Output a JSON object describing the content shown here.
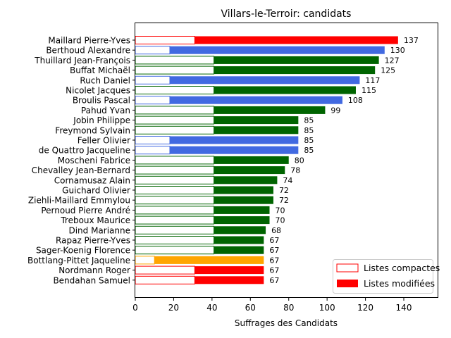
{
  "chart_data": {
    "type": "bar",
    "orientation": "horizontal",
    "title": "Villars-le-Terroir: candidats",
    "xlabel": "Suffrages des Candidats",
    "xlim": [
      0,
      158
    ],
    "xticks": [
      0,
      20,
      40,
      60,
      80,
      100,
      120,
      140
    ],
    "colors": {
      "red": "#ff0000",
      "blue": "#4169e1",
      "green": "#006400",
      "orange": "#ffa500"
    },
    "legend": {
      "position": "lower right",
      "entries": [
        {
          "label": "Listes compactes",
          "style": "outline",
          "color": "#ff0000"
        },
        {
          "label": "Listes modifiées",
          "style": "filled",
          "color": "#ff0000"
        }
      ]
    },
    "candidates": [
      {
        "name": "Maillard Pierre-Yves",
        "total": 137,
        "compact": 31,
        "color": "red"
      },
      {
        "name": "Berthoud Alexandre",
        "total": 130,
        "compact": 18,
        "color": "blue"
      },
      {
        "name": "Thuillard Jean-François",
        "total": 127,
        "compact": 41,
        "color": "green"
      },
      {
        "name": "Buffat Michaël",
        "total": 125,
        "compact": 41,
        "color": "green"
      },
      {
        "name": "Ruch Daniel",
        "total": 117,
        "compact": 18,
        "color": "blue"
      },
      {
        "name": "Nicolet Jacques",
        "total": 115,
        "compact": 41,
        "color": "green"
      },
      {
        "name": "Broulis Pascal",
        "total": 108,
        "compact": 18,
        "color": "blue"
      },
      {
        "name": "Pahud Yvan",
        "total": 99,
        "compact": 41,
        "color": "green"
      },
      {
        "name": "Jobin Philippe",
        "total": 85,
        "compact": 41,
        "color": "green"
      },
      {
        "name": "Freymond Sylvain",
        "total": 85,
        "compact": 41,
        "color": "green"
      },
      {
        "name": "Feller Olivier",
        "total": 85,
        "compact": 18,
        "color": "blue"
      },
      {
        "name": "de Quattro Jacqueline",
        "total": 85,
        "compact": 18,
        "color": "blue"
      },
      {
        "name": "Moscheni Fabrice",
        "total": 80,
        "compact": 41,
        "color": "green"
      },
      {
        "name": "Chevalley Jean-Bernard",
        "total": 78,
        "compact": 41,
        "color": "green"
      },
      {
        "name": "Cornamusaz Alain",
        "total": 74,
        "compact": 41,
        "color": "green"
      },
      {
        "name": "Guichard Olivier",
        "total": 72,
        "compact": 41,
        "color": "green"
      },
      {
        "name": "Ziehli-Maillard Emmylou",
        "total": 72,
        "compact": 41,
        "color": "green"
      },
      {
        "name": "Pernoud Pierre André",
        "total": 70,
        "compact": 41,
        "color": "green"
      },
      {
        "name": "Treboux Maurice",
        "total": 70,
        "compact": 41,
        "color": "green"
      },
      {
        "name": "Dind Marianne",
        "total": 68,
        "compact": 41,
        "color": "green"
      },
      {
        "name": "Rapaz Pierre-Yves",
        "total": 67,
        "compact": 41,
        "color": "green"
      },
      {
        "name": "Sager-Koenig Florence",
        "total": 67,
        "compact": 41,
        "color": "green"
      },
      {
        "name": "Bottlang-Pittet Jaqueline",
        "total": 67,
        "compact": 10,
        "color": "orange"
      },
      {
        "name": "Nordmann Roger",
        "total": 67,
        "compact": 31,
        "color": "red"
      },
      {
        "name": "Bendahan Samuel",
        "total": 67,
        "compact": 31,
        "color": "red"
      }
    ]
  }
}
